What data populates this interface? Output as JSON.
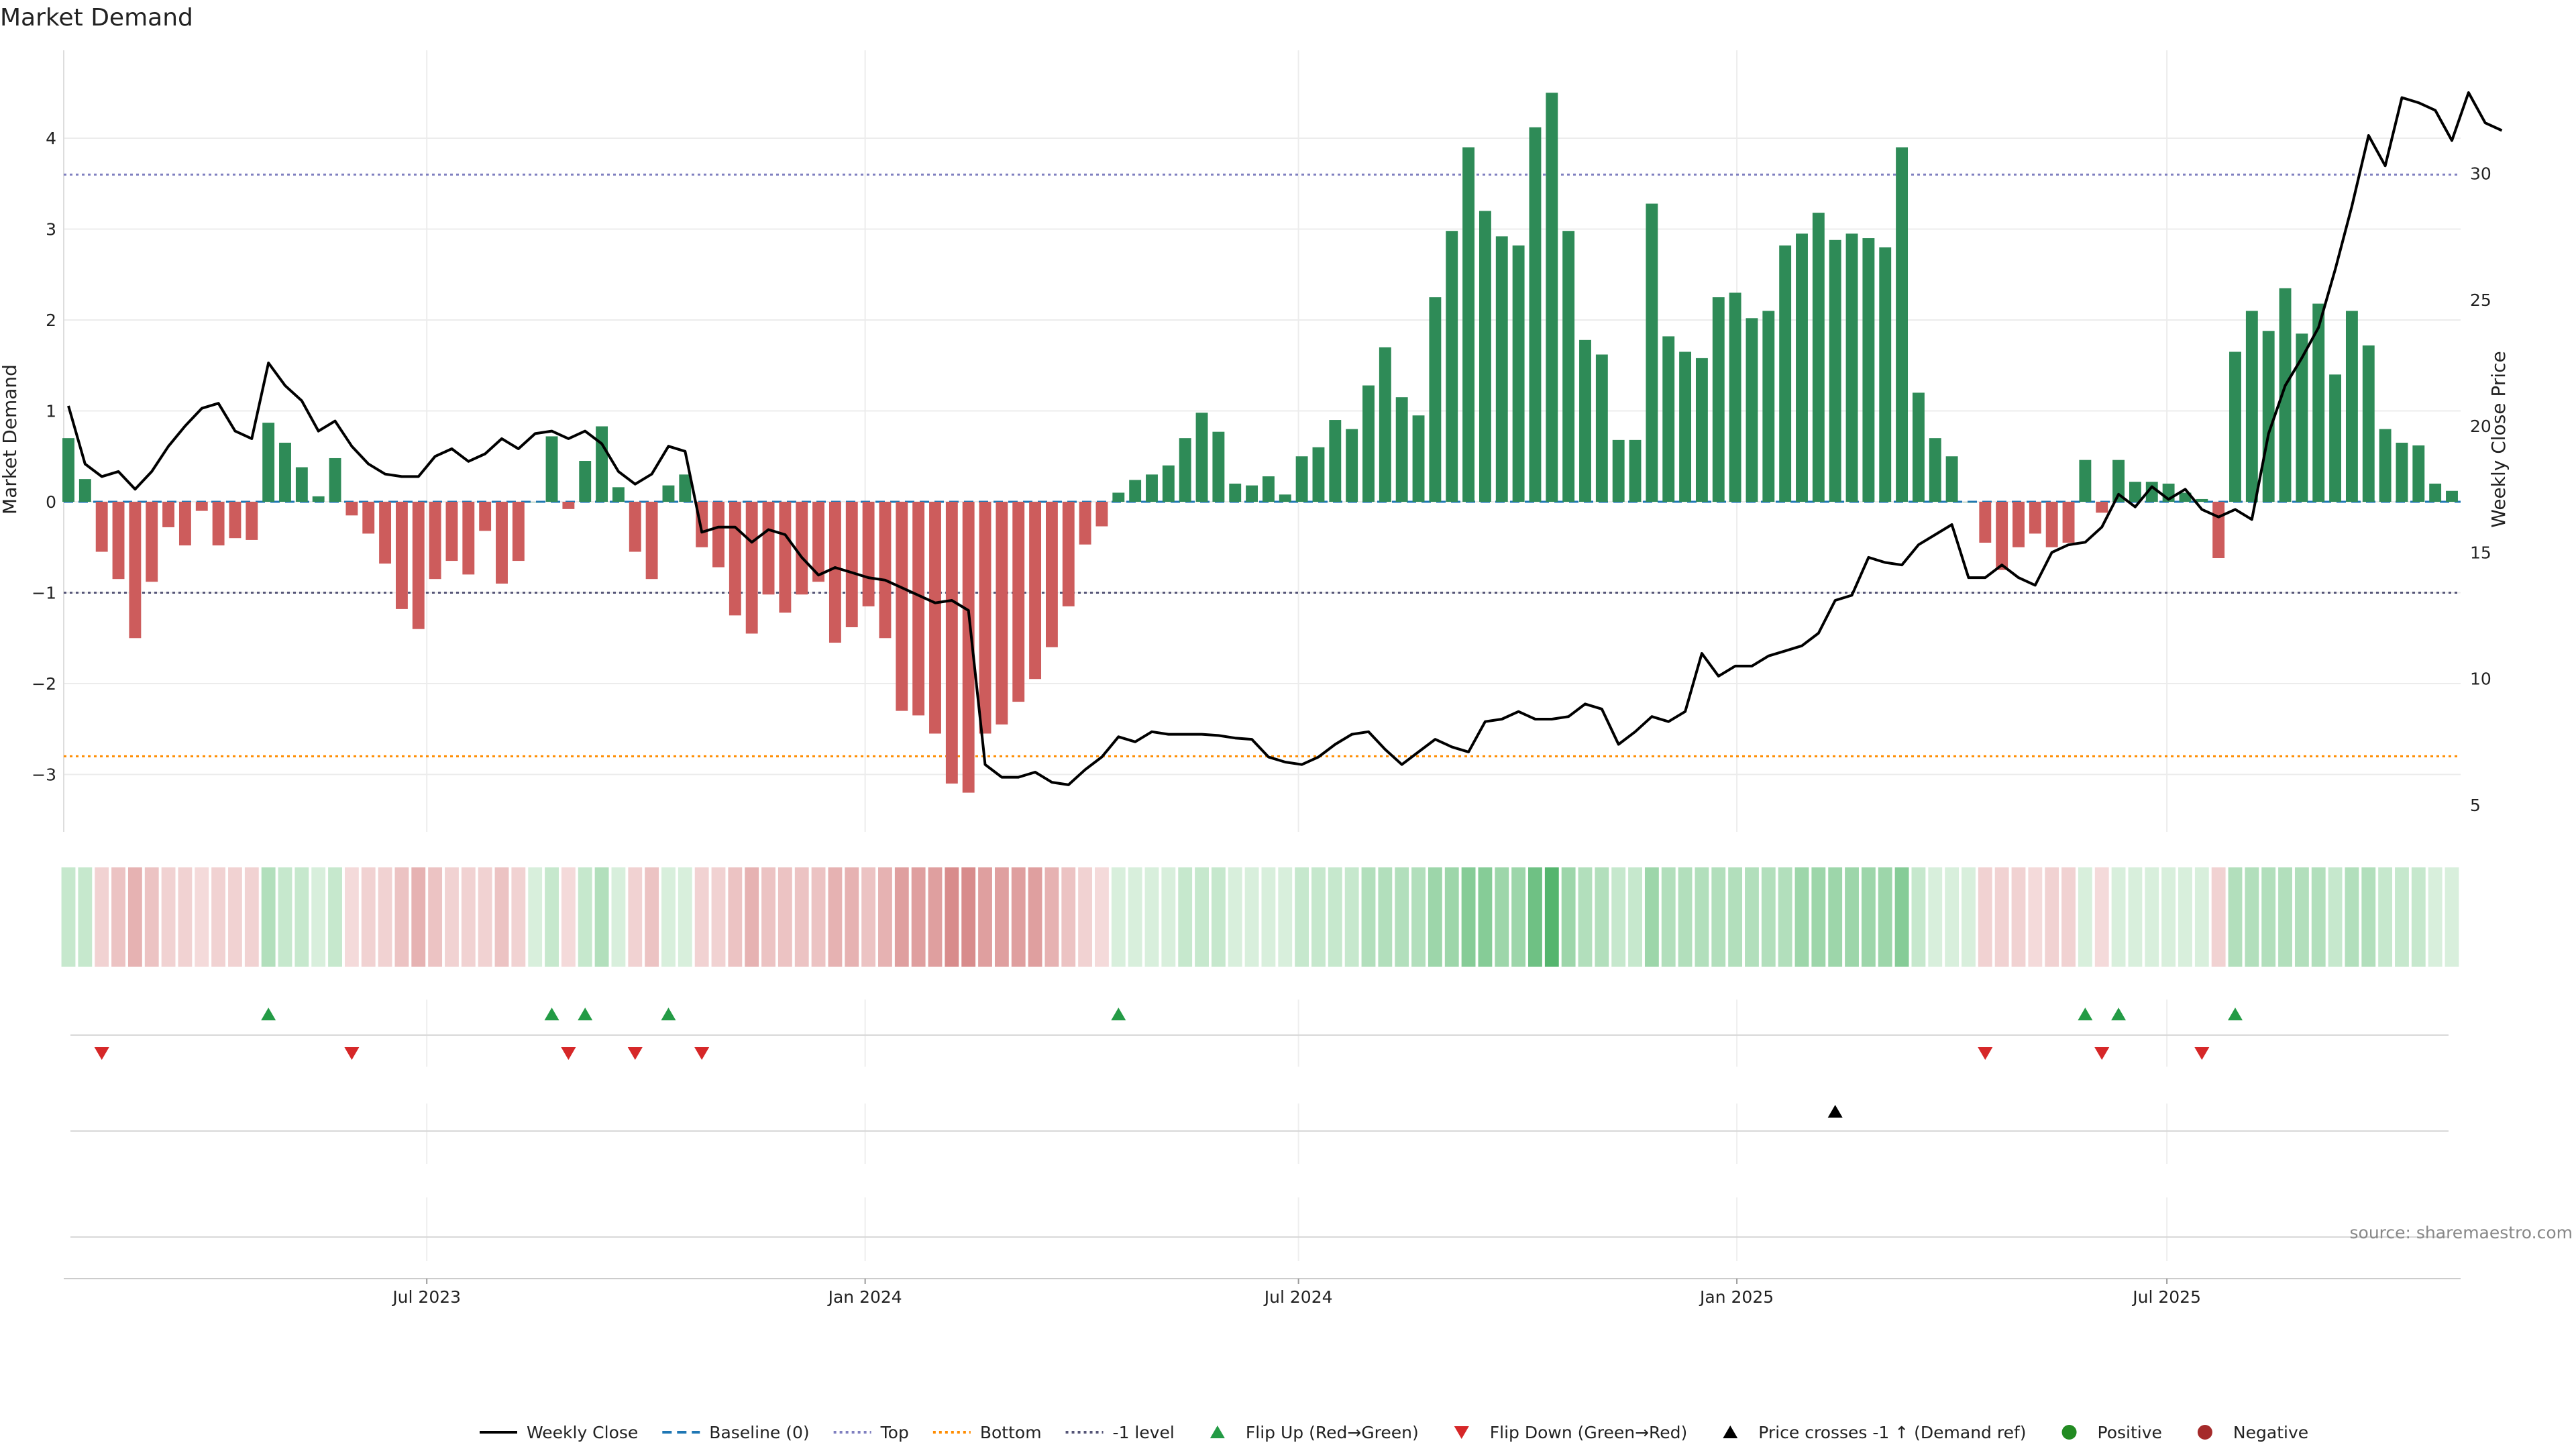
{
  "chart_data": {
    "type": "bar",
    "title": "Market Demand",
    "y_left_label": "Market Demand",
    "y_right_label": "Weekly Close Price",
    "ylim_left": [
      -3.6,
      5.0
    ],
    "ylim_right": [
      3.5,
      34.5
    ],
    "left_ticks": [
      4,
      3,
      2,
      1,
      0,
      -1,
      -2,
      -3
    ],
    "left_tick_labels": [
      "4",
      "3",
      "2",
      "1",
      "0",
      "−1",
      "−2",
      "−3"
    ],
    "right_ticks": [
      30,
      25,
      20,
      15,
      10,
      5
    ],
    "right_tick_labels": [
      "30",
      "25",
      "20",
      "15",
      "10",
      "5"
    ],
    "x_tick_labels": [
      "Jul 2023",
      "Jan 2024",
      "Jul 2024",
      "Jan 2025",
      "Jul 2025"
    ],
    "x_tick_weeks": [
      21.5,
      47.8,
      73.8,
      100.1,
      125.9
    ],
    "reference_lines": {
      "top": 3.6,
      "bottom": -2.8,
      "minus_one": -1.0,
      "baseline": 0
    },
    "colors": {
      "positive": "#2e8b57",
      "negative": "#cd5c5c",
      "flip_up": "#239b45",
      "flip_down": "#d62728",
      "price": "#000000",
      "top_line": "#8080c0",
      "bottom_line": "#ff8c00",
      "minus_one_line": "#555577",
      "baseline": "#1f77b4",
      "legend_positive": "#228b22",
      "legend_negative": "#a52a2a"
    },
    "series": [
      {
        "name": "Market Demand",
        "values": [
          0.7,
          0.25,
          -0.55,
          -0.85,
          -1.5,
          -0.88,
          -0.28,
          -0.48,
          -0.1,
          -0.48,
          -0.4,
          -0.42,
          0.87,
          0.65,
          0.38,
          0.06,
          0.48,
          -0.15,
          -0.35,
          -0.68,
          -1.18,
          -1.4,
          -0.85,
          -0.65,
          -0.8,
          -0.32,
          -0.9,
          -0.65,
          0.0,
          0.72,
          -0.08,
          0.45,
          0.83,
          0.16,
          -0.55,
          -0.85,
          0.18,
          0.3,
          -0.5,
          -0.72,
          -1.25,
          -1.45,
          -1.02,
          -1.22,
          -1.02,
          -0.88,
          -1.55,
          -1.38,
          -1.15,
          -1.5,
          -2.3,
          -2.35,
          -2.55,
          -3.1,
          -3.2,
          -2.55,
          -2.45,
          -2.2,
          -1.95,
          -1.6,
          -1.15,
          -0.47,
          -0.27,
          0.1,
          0.24,
          0.3,
          0.4,
          0.7,
          0.98,
          0.77,
          0.2,
          0.18,
          0.28,
          0.08,
          0.5,
          0.6,
          0.9,
          0.8,
          1.28,
          1.7,
          1.15,
          0.95,
          2.25,
          2.98,
          3.9,
          3.2,
          2.92,
          2.82,
          4.12,
          4.5,
          2.98,
          1.78,
          1.62,
          0.68,
          0.68,
          3.28,
          1.82,
          1.65,
          1.58,
          2.25,
          2.3,
          2.02,
          2.1,
          2.82,
          2.95,
          3.18,
          2.88,
          2.95,
          2.9,
          2.8,
          3.9,
          1.2,
          0.7,
          0.5,
          0.0,
          -0.45,
          -0.75,
          -0.5,
          -0.35,
          -0.5,
          -0.45,
          0.46,
          -0.12,
          0.46,
          0.22,
          0.22,
          0.2,
          0.1,
          0.03,
          -0.62,
          1.65,
          2.1,
          1.88,
          2.35,
          1.85,
          2.18,
          1.4,
          2.1,
          1.72,
          0.8,
          0.65,
          0.62,
          0.2,
          0.12
        ]
      },
      {
        "name": "Weekly Close",
        "values": [
          20.8,
          18.5,
          18.0,
          18.2,
          17.5,
          18.2,
          19.2,
          20.0,
          20.7,
          20.9,
          19.8,
          19.5,
          22.5,
          21.6,
          21.0,
          19.8,
          20.2,
          19.2,
          18.5,
          18.1,
          18.0,
          18.0,
          18.8,
          19.1,
          18.6,
          18.9,
          19.5,
          19.1,
          19.7,
          19.8,
          19.5,
          19.8,
          19.3,
          18.2,
          17.7,
          18.1,
          19.2,
          19.0,
          15.8,
          16.0,
          16.0,
          15.4,
          15.9,
          15.7,
          14.8,
          14.1,
          14.4,
          14.2,
          14.0,
          13.9,
          13.6,
          13.3,
          13.0,
          13.1,
          12.7,
          6.6,
          6.1,
          6.1,
          6.3,
          5.9,
          5.8,
          6.4,
          6.9,
          7.7,
          7.5,
          7.9,
          7.8,
          7.8,
          7.8,
          7.75,
          7.65,
          7.6,
          6.9,
          6.7,
          6.6,
          6.9,
          7.4,
          7.8,
          7.9,
          7.2,
          6.6,
          7.1,
          7.6,
          7.3,
          7.1,
          8.3,
          8.4,
          8.7,
          8.4,
          8.4,
          8.5,
          9.0,
          8.8,
          7.4,
          7.9,
          8.5,
          8.3,
          8.7,
          11.0,
          10.1,
          10.5,
          10.5,
          10.9,
          11.1,
          11.3,
          11.8,
          13.1,
          13.3,
          14.8,
          14.6,
          14.5,
          15.3,
          15.7,
          16.1,
          14.0,
          14.0,
          14.5,
          14.0,
          13.7,
          15.0,
          15.3,
          15.4,
          16.0,
          17.3,
          16.8,
          17.6,
          17.1,
          17.5,
          16.7,
          16.4,
          16.7,
          16.3,
          19.7,
          21.6,
          22.7,
          23.9,
          26.2,
          28.7,
          31.5,
          30.3,
          33.0,
          32.8,
          32.5,
          31.3,
          33.2,
          32.0,
          31.7
        ]
      }
    ],
    "shade_levels": [
      2,
      2,
      2,
      3,
      4,
      3,
      2,
      2,
      1,
      2,
      2,
      2,
      3,
      2,
      2,
      1,
      2,
      1,
      2,
      2,
      3,
      4,
      3,
      2,
      2,
      2,
      3,
      2,
      1,
      2,
      1,
      2,
      3,
      1,
      2,
      3,
      1,
      1,
      2,
      2,
      3,
      4,
      3,
      3,
      3,
      3,
      4,
      4,
      3,
      4,
      5,
      5,
      5,
      6,
      6,
      5,
      5,
      5,
      5,
      4,
      3,
      2,
      1,
      1,
      1,
      1,
      1,
      2,
      2,
      2,
      1,
      1,
      1,
      1,
      2,
      2,
      2,
      2,
      3,
      3,
      3,
      3,
      4,
      4,
      5,
      5,
      4,
      4,
      6,
      7,
      4,
      3,
      3,
      2,
      2,
      4,
      3,
      3,
      3,
      3,
      3,
      3,
      3,
      3,
      4,
      4,
      4,
      4,
      4,
      4,
      5,
      2,
      1,
      1,
      1,
      2,
      2,
      2,
      1,
      2,
      2,
      1,
      1,
      1,
      1,
      1,
      1,
      1,
      1,
      2,
      3,
      3,
      3,
      3,
      3,
      3,
      2,
      3,
      3,
      2,
      2,
      2,
      1,
      1
    ],
    "flip_up_weeks": [
      12,
      29,
      31,
      36,
      63,
      121,
      123,
      130
    ],
    "flip_down_weeks": [
      2,
      17,
      30,
      34,
      38,
      115,
      122,
      128
    ],
    "price_cross_weeks": [
      106
    ],
    "source": "source: sharemaestro.com",
    "legend": [
      {
        "label": "Weekly Close",
        "kind": "line-solid",
        "color": "#000000"
      },
      {
        "label": "Baseline (0)",
        "kind": "line-dash",
        "color": "#1f77b4"
      },
      {
        "label": "Top",
        "kind": "line-dot",
        "color": "#8080c0"
      },
      {
        "label": "Bottom",
        "kind": "line-dot",
        "color": "#ff8c00"
      },
      {
        "label": "-1 level",
        "kind": "line-dot",
        "color": "#555577"
      },
      {
        "label": "Flip Up (Red→Green)",
        "kind": "tri-up",
        "color": "#239b45"
      },
      {
        "label": "Flip Down (Green→Red)",
        "kind": "tri-down",
        "color": "#d62728"
      },
      {
        "label": "Price crosses -1 ↑ (Demand ref)",
        "kind": "tri-up",
        "color": "#000000"
      },
      {
        "label": "Positive",
        "kind": "dot",
        "color": "#228b22"
      },
      {
        "label": "Negative",
        "kind": "dot",
        "color": "#a52a2a"
      }
    ]
  }
}
